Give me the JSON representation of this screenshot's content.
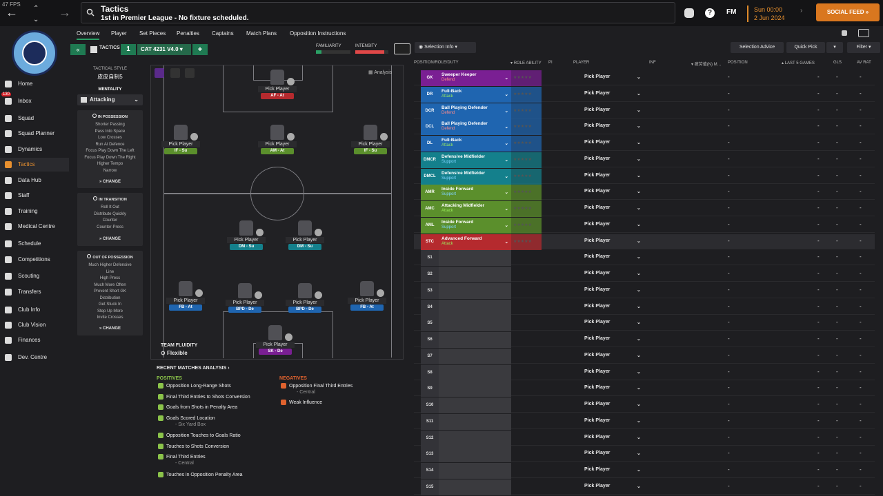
{
  "fps": "47 FPS",
  "header": {
    "title": "Tactics",
    "subtitle": "1st in Premier League - No fixture scheduled.",
    "fm_label": "FM",
    "date_day": "Sun 00:00",
    "date": "2 Jun 2024",
    "social_feed": "SOCIAL FEED »"
  },
  "club": {
    "name": "MANCHESTER CITY"
  },
  "sidebar": {
    "items": [
      {
        "label": "Home"
      },
      {
        "label": "Inbox"
      },
      {
        "label": "Squad"
      },
      {
        "label": "Squad Planner"
      },
      {
        "label": "Dynamics"
      },
      {
        "label": "Tactics"
      },
      {
        "label": "Data Hub"
      },
      {
        "label": "Staff"
      },
      {
        "label": "Training"
      },
      {
        "label": "Medical Centre"
      },
      {
        "label": "Schedule"
      },
      {
        "label": "Competitions"
      },
      {
        "label": "Scouting"
      },
      {
        "label": "Transfers"
      },
      {
        "label": "Club Info"
      },
      {
        "label": "Club Vision"
      },
      {
        "label": "Finances"
      },
      {
        "label": "Dev. Centre"
      }
    ],
    "inbox_badge": "130"
  },
  "tabs": [
    "Overview",
    "Player",
    "Set Pieces",
    "Penalties",
    "Captains",
    "Match Plans",
    "Opposition Instructions"
  ],
  "toolbar": {
    "tactics_label": "TACTICS",
    "tactic_num": "1",
    "tactic_name": "CAT 4231 V4.0",
    "familiarity_label": "FAMILIARITY",
    "intensity_label": "INTENSITY",
    "selection_info": "Selection Info",
    "selection_advice": "Selection Advice",
    "quick_pick": "Quick Pick",
    "filter": "Filter",
    "analysis": "Analysis"
  },
  "left_panel": {
    "tactical_style_label": "TACTICAL STYLE",
    "tactical_style": "皮皮自制5",
    "mentality_label": "MENTALITY",
    "mentality": "Attacking",
    "in_possession": {
      "title": "IN POSSESSION",
      "lines": [
        "Shorter Passing",
        "Pass Into Space",
        "Low Crosses",
        "Run At Defence",
        "Focus Play Down The Left",
        "Focus Play Down The Right",
        "Higher Tempo",
        "Narrow"
      ]
    },
    "in_transition": {
      "title": "IN TRANSITION",
      "lines": [
        "Roll It Out",
        "Distribute Quickly",
        "Counter",
        "Counter-Press"
      ]
    },
    "out_of_possession": {
      "title": "OUT OF POSSESSION",
      "lines": [
        "Much Higher Defensive",
        "Line",
        "High Press",
        "Much More Often",
        "Prevent Short GK",
        "Distribution",
        "Get Stuck In",
        "Step Up More",
        "Invite Crosses"
      ]
    },
    "change": "CHANGE"
  },
  "pitch": {
    "pick_label": "Pick Player",
    "team_fluidity_label": "TEAM FLUIDITY",
    "team_fluidity": "Flexible",
    "players": [
      {
        "role": "AF - At",
        "color": "#b52a2e"
      },
      {
        "role": "IF - Su",
        "color": "#5b8f2c"
      },
      {
        "role": "AM - At",
        "color": "#5b8f2c"
      },
      {
        "role": "IF - Su",
        "color": "#5b8f2c"
      },
      {
        "role": "DM - Su",
        "color": "#14808c"
      },
      {
        "role": "DM - Su",
        "color": "#14808c"
      },
      {
        "role": "FB - At",
        "color": "#1f65b0"
      },
      {
        "role": "BPD - De",
        "color": "#1f65b0"
      },
      {
        "role": "BPD - De",
        "color": "#1f65b0"
      },
      {
        "role": "FB - At",
        "color": "#1f65b0"
      },
      {
        "role": "SK - De",
        "color": "#7a1f93"
      }
    ]
  },
  "analysis": {
    "title": "RECENT MATCHES ANALYSIS ›",
    "positives_label": "POSITIVES",
    "positives": [
      {
        "text": "Opposition Long-Range Shots",
        "sub": ""
      },
      {
        "text": "Final Third Entries to Shots Conversion",
        "sub": ""
      },
      {
        "text": "Goals from Shots in Penalty Area",
        "sub": ""
      },
      {
        "text": "Goals Scored Location",
        "sub": "- Six Yard Box"
      },
      {
        "text": "Opposition Touches to Goals Ratio",
        "sub": ""
      },
      {
        "text": "Touches to Shots Conversion",
        "sub": ""
      },
      {
        "text": "Final Third Entries",
        "sub": "- Central"
      },
      {
        "text": "Touches in Opposition Penalty Area",
        "sub": ""
      }
    ],
    "negatives_label": "NEGATIVES",
    "negatives": [
      {
        "text": "Opposition Final Third Entries",
        "sub": "- Central"
      },
      {
        "text": "Weak Influence",
        "sub": ""
      }
    ]
  },
  "table": {
    "headers": {
      "pos_role": "POSITION/ROLE/DUTY",
      "role_ability": "ROLE ABILITY",
      "pi": "PI",
      "player": "PLAYER",
      "inf": "INF",
      "chinese": "疲劳值(N) M…",
      "position": "POSITION",
      "last5": "LAST 5 GAMES",
      "gls": "GLS",
      "av_rat": "AV RAT"
    },
    "pick_player": "Pick Player",
    "dash": "-",
    "stars": "★★★★★",
    "rows": [
      {
        "pos": "GK",
        "role": "Sweeper Keeper",
        "duty": "Defend",
        "color": "#7a1f93",
        "duty_color": "#ff8a8a"
      },
      {
        "pos": "DR",
        "role": "Full-Back",
        "duty": "Attack",
        "color": "#1f65b0",
        "duty_color": "#9bef5c"
      },
      {
        "pos": "DCR",
        "role": "Ball Playing Defender",
        "duty": "Defend",
        "color": "#1f65b0",
        "duty_color": "#ff8a8a"
      },
      {
        "pos": "DCL",
        "role": "Ball Playing Defender",
        "duty": "Defend",
        "color": "#1f65b0",
        "duty_color": "#ff8a8a"
      },
      {
        "pos": "DL",
        "role": "Full-Back",
        "duty": "Attack",
        "color": "#1f65b0",
        "duty_color": "#9bef5c"
      },
      {
        "pos": "DMCR",
        "role": "Defensive Midfielder",
        "duty": "Support",
        "color": "#14808c",
        "duty_color": "#7fd4ff"
      },
      {
        "pos": "DMCL",
        "role": "Defensive Midfielder",
        "duty": "Support",
        "color": "#14808c",
        "duty_color": "#7fd4ff"
      },
      {
        "pos": "AMR",
        "role": "Inside Forward",
        "duty": "Support",
        "color": "#5b8f2c",
        "duty_color": "#7fd4ff"
      },
      {
        "pos": "AMC",
        "role": "Attacking Midfielder",
        "duty": "Attack",
        "color": "#5b8f2c",
        "duty_color": "#9bef5c"
      },
      {
        "pos": "AML",
        "role": "Inside Forward",
        "duty": "Support",
        "color": "#5b8f2c",
        "duty_color": "#7fd4ff"
      },
      {
        "pos": "STC",
        "role": "Advanced Forward",
        "duty": "Attack",
        "color": "#b52a2e",
        "duty_color": "#9bef5c"
      }
    ],
    "subs": [
      "S1",
      "S2",
      "S3",
      "S4",
      "S5",
      "S6",
      "S7",
      "S8",
      "S9",
      "S10",
      "S11",
      "S12",
      "S13",
      "S14",
      "S15"
    ]
  }
}
